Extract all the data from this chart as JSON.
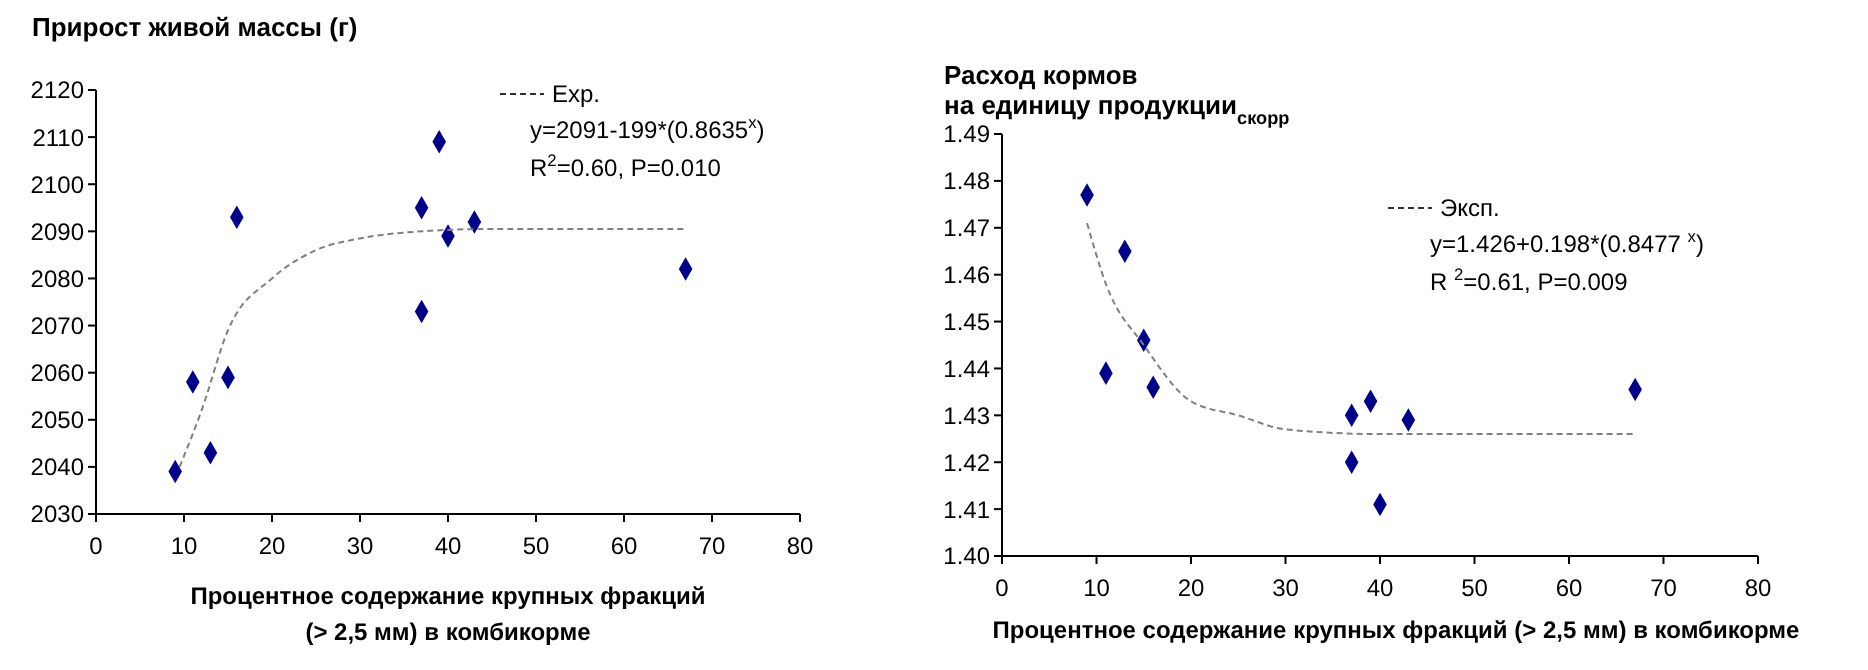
{
  "chart_data": [
    {
      "type": "scatter",
      "title": "Прирост живой массы (г)",
      "xlabel": "Процентное содержание крупных фракций\n(> 2,5 мм) в комбикорме",
      "xlim": [
        0,
        80
      ],
      "xticks": [
        0,
        10,
        20,
        30,
        40,
        50,
        60,
        70,
        80
      ],
      "ylim": [
        2030,
        2120
      ],
      "yticks": [
        2030,
        2040,
        2050,
        2060,
        2070,
        2080,
        2090,
        2100,
        2110,
        2120
      ],
      "grid": false,
      "legend": "top right",
      "marker": "diamond",
      "series": [
        {
          "color": "#00008b",
          "x": [
            9,
            11,
            13,
            15,
            16,
            37,
            37,
            39,
            40,
            43,
            67
          ],
          "values": [
            2039,
            2058,
            2043,
            2059,
            2093,
            2095,
            2073,
            2109,
            2089,
            2092,
            2082
          ]
        },
        {
          "type": "line",
          "name": "Exp.",
          "color": "#808080",
          "line_style": "dashed",
          "marker": "none",
          "x": [
            9.5,
            12,
            15,
            20,
            25,
            30,
            37,
            45,
            67
          ],
          "values": [
            2040,
            2052,
            2069,
            2080,
            2086,
            2088.5,
            2090,
            2090.5,
            2090.5
          ]
        }
      ],
      "annotations": [
        "y=2091-199*(0.8635$^{x}$)",
        "R$^{2}$=0.60, P=0.010"
      ]
    },
    {
      "type": "scatter",
      "title": "Расход кормов\nна единицу продукции$_{скорр}$",
      "xlabel": "Процентное содержание крупных фракций (> 2,5 мм) в комбикорме",
      "xlim": [
        0,
        80
      ],
      "xticks": [
        0,
        10,
        20,
        30,
        40,
        50,
        60,
        70,
        80
      ],
      "ylim": [
        1.4,
        1.49
      ],
      "yticks": [
        {
          "value": 1.4,
          "label": "1.40"
        },
        1.41,
        1.42,
        1.43,
        1.44,
        1.45,
        1.46,
        1.47,
        1.48,
        1.49
      ],
      "grid": false,
      "legend": "top right",
      "marker": "diamond",
      "series": [
        {
          "color": "#00008b",
          "x": [
            9,
            11,
            13,
            15,
            16,
            37,
            37,
            39,
            40,
            43,
            67
          ],
          "values": [
            1.477,
            1.439,
            1.465,
            1.446,
            1.436,
            1.43,
            1.42,
            1.433,
            1.411,
            1.429,
            1.4355
          ]
        },
        {
          "type": "line",
          "name": "Эксп.",
          "color": "#808080",
          "line_style": "dashed",
          "marker": "none",
          "x": [
            9,
            11,
            15,
            20,
            25,
            30,
            40,
            67
          ],
          "values": [
            1.471,
            1.458,
            1.445,
            1.433,
            1.43,
            1.427,
            1.426,
            1.426
          ]
        }
      ],
      "annotations": [
        "y=1.426+0.198*(0.8477 $^{x}$)",
        "R $^{2}$=0.61, P=0.009"
      ]
    }
  ]
}
